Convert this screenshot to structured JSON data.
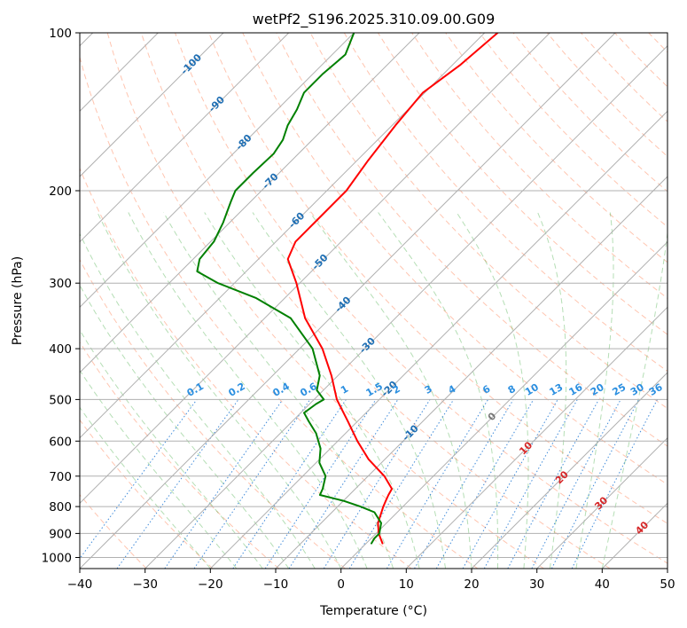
{
  "chart_data": {
    "type": "line",
    "subtype": "skew-t log-p diagram",
    "title": "wetPf2_S196.2025.310.09.00.G09",
    "xlabel": "Temperature (°C)",
    "ylabel": "Pressure (hPa)",
    "xlim": [
      -40,
      50
    ],
    "ylim": [
      1050,
      100
    ],
    "x_ticks": [
      -40,
      -30,
      -20,
      -10,
      0,
      10,
      20,
      30,
      40,
      50
    ],
    "y_ticks": [
      100,
      200,
      300,
      400,
      500,
      600,
      700,
      800,
      900,
      1000
    ],
    "isotherms": [
      -100,
      -90,
      -80,
      -70,
      -60,
      -50,
      -40,
      -30,
      -20,
      -10,
      0,
      10,
      20,
      30,
      40
    ],
    "mixing_ratio_labels": [
      "0.1",
      "0.2",
      "0.4",
      "0.6",
      "1",
      "1.5",
      "2",
      "3",
      "4",
      "6",
      "8",
      "10",
      "13",
      "16",
      "20",
      "25",
      "30",
      "36"
    ],
    "mixing_ratio_values": [
      0.1,
      0.2,
      0.4,
      0.6,
      1,
      1.5,
      2,
      3,
      4,
      6,
      8,
      10,
      13,
      16,
      20,
      25,
      30,
      36
    ],
    "series": [
      {
        "name": "Temperature",
        "color": "#ff0000",
        "pressure": [
          940,
          900,
          860,
          800,
          780,
          760,
          740,
          700,
          650,
          600,
          550,
          500,
          450,
          400,
          350,
          300,
          270,
          250,
          230,
          200,
          175,
          150,
          130,
          115,
          100
        ],
        "values": [
          2.5,
          0.4,
          -1.3,
          -3.0,
          -3.5,
          -4.0,
          -4.4,
          -7.5,
          -12.5,
          -17.0,
          -21.5,
          -26.5,
          -31.0,
          -36.5,
          -43.8,
          -50.5,
          -55.5,
          -57.0,
          -57.0,
          -57.0,
          -58.3,
          -59.5,
          -60.3,
          -58.8,
          -58.0
        ]
      },
      {
        "name": "Dew point",
        "color": "#008000",
        "pressure": [
          940,
          920,
          900,
          860,
          820,
          800,
          780,
          760,
          740,
          700,
          660,
          620,
          580,
          550,
          530,
          510,
          500,
          480,
          450,
          400,
          350,
          320,
          300,
          285,
          270,
          250,
          230,
          210,
          200,
          185,
          170,
          160,
          150,
          140,
          130,
          120,
          110,
          100
        ],
        "values": [
          0.8,
          0.5,
          0.5,
          -0.8,
          -3.5,
          -6.5,
          -10.0,
          -14.5,
          -15.0,
          -16.5,
          -19.5,
          -21.5,
          -24.5,
          -27.5,
          -29.5,
          -29.0,
          -28.5,
          -31.0,
          -32.8,
          -38.0,
          -46.0,
          -54.5,
          -62.5,
          -67.5,
          -69.0,
          -69.5,
          -71.0,
          -73.0,
          -74.0,
          -74.0,
          -73.8,
          -74.5,
          -76.0,
          -77.0,
          -78.5,
          -78.5,
          -78.0,
          -80.0
        ]
      }
    ]
  }
}
